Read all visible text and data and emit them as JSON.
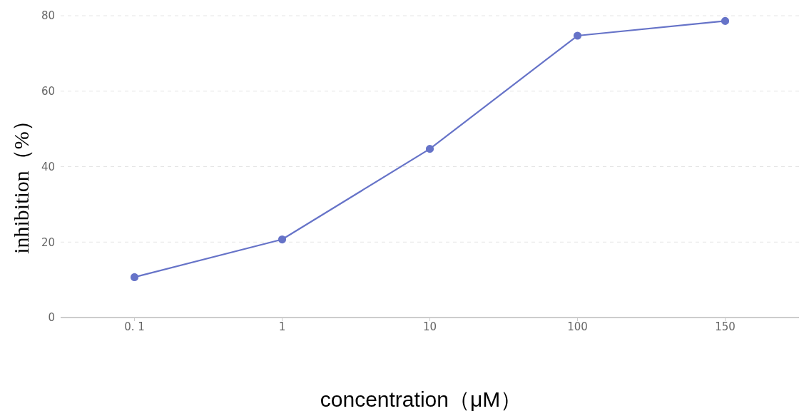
{
  "chart_data": {
    "type": "line",
    "xlabel": "concentration（μM）",
    "ylabel": "inhibition（%）",
    "categories": [
      "0. 1",
      "1",
      "10",
      "100",
      "150"
    ],
    "series": [
      {
        "color": "#6673c8",
        "values": [
          10.7,
          20.7,
          44.7,
          74.7,
          78.6
        ]
      }
    ],
    "ylim": [
      0,
      80
    ],
    "yticks": [
      0,
      20,
      40,
      60,
      80
    ],
    "grid": "y",
    "legend": false,
    "marker": "circle",
    "line_style": "solid"
  }
}
